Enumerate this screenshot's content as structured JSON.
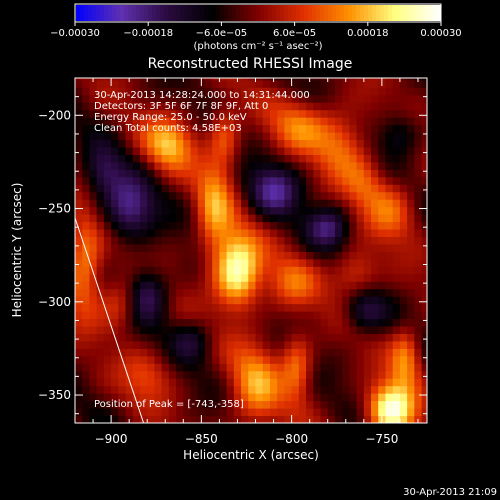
{
  "chart_data": {
    "type": "heatmap",
    "title": "Reconstructed RHESSI Image",
    "xlabel": "Heliocentric X (arcsec)",
    "ylabel": "Heliocentric Y (arcsec)",
    "xlim": [
      -920,
      -725
    ],
    "ylim": [
      -365,
      -180
    ],
    "x_ticks": [
      -900,
      -850,
      -800,
      -750
    ],
    "y_ticks": [
      -350,
      -300,
      -250,
      -200
    ],
    "x_tick_labels": [
      "−900",
      "−850",
      "−800",
      "−750"
    ],
    "y_tick_labels": [
      "−350",
      "−300",
      "−250",
      "−200"
    ],
    "colorbar": {
      "range": [
        -0.0003,
        0.0003
      ],
      "ticks": [
        -0.0003,
        -0.00018,
        -6e-05,
        6e-05,
        0.00018,
        0.0003
      ],
      "tick_labels": [
        "−0.00030",
        "−0.00018",
        "−6.0e−05",
        "6.0e−05",
        "0.00018",
        "0.00030"
      ],
      "unit_label": "(photons cm⁻² s⁻¹ asec⁻²)",
      "colormap": [
        "#0000ff",
        "#6030b0",
        "#2a0a40",
        "#000000",
        "#800000",
        "#e03000",
        "#ff9000",
        "#ffff80",
        "#ffffff"
      ]
    },
    "annotations": [
      "30-Apr-2013 14:28:24.000 to 14:31:44.000",
      "Detectors: 3F 5F 6F 7F 8F 9F, Att 0",
      "Energy Range: 25.0 - 50.0 keV",
      "Clean     Total counts: 4.58E+03"
    ],
    "peak_label": "Position of Peak = [-743,-358]",
    "peak": [
      -743,
      -358
    ],
    "limb_line": [
      [
        -920,
        -255
      ],
      [
        -882,
        -365
      ]
    ],
    "hot_spots": [
      {
        "x": -830,
        "y": -283,
        "v": 0.0003,
        "sx": 9,
        "sy": 14
      },
      {
        "x": -843,
        "y": -250,
        "v": 0.00016,
        "sx": 7,
        "sy": 18
      },
      {
        "x": -837,
        "y": -212,
        "v": 0.00012,
        "sx": 6,
        "sy": 12
      },
      {
        "x": -868,
        "y": -215,
        "v": 0.00018,
        "sx": 10,
        "sy": 10
      },
      {
        "x": -795,
        "y": -205,
        "v": 0.00013,
        "sx": 12,
        "sy": 10
      },
      {
        "x": -772,
        "y": -215,
        "v": 0.00014,
        "sx": 10,
        "sy": 12
      },
      {
        "x": -745,
        "y": -250,
        "v": 0.00012,
        "sx": 10,
        "sy": 12
      },
      {
        "x": -820,
        "y": -345,
        "v": 0.00016,
        "sx": 10,
        "sy": 16
      },
      {
        "x": -797,
        "y": -335,
        "v": 0.00015,
        "sx": 6,
        "sy": 12
      },
      {
        "x": -745,
        "y": -358,
        "v": 0.0003,
        "sx": 9,
        "sy": 10
      },
      {
        "x": -737,
        "y": -330,
        "v": 0.00015,
        "sx": 6,
        "sy": 12
      },
      {
        "x": -915,
        "y": -280,
        "v": 0.00018,
        "sx": 7,
        "sy": 18
      },
      {
        "x": -895,
        "y": -300,
        "v": 0.00012,
        "sx": 8,
        "sy": 10
      },
      {
        "x": -800,
        "y": -290,
        "v": 0.00011,
        "sx": 10,
        "sy": 10
      },
      {
        "x": -765,
        "y": -285,
        "v": 0.00012,
        "sx": 9,
        "sy": 9
      },
      {
        "x": -760,
        "y": -235,
        "v": 9e-05,
        "sx": 8,
        "sy": 10
      },
      {
        "x": -880,
        "y": -340,
        "v": 9e-05,
        "sx": 10,
        "sy": 10
      }
    ],
    "cold_spots": [
      {
        "x": -890,
        "y": -250,
        "v": -0.00018,
        "sx": 10,
        "sy": 12
      },
      {
        "x": -810,
        "y": -240,
        "v": -0.00016,
        "sx": 10,
        "sy": 10
      },
      {
        "x": -780,
        "y": -260,
        "v": -0.00014,
        "sx": 8,
        "sy": 8
      },
      {
        "x": -880,
        "y": -295,
        "v": -0.00016,
        "sx": 8,
        "sy": 10
      },
      {
        "x": -855,
        "y": -320,
        "v": -0.0001,
        "sx": 8,
        "sy": 8
      },
      {
        "x": -760,
        "y": -305,
        "v": -0.00012,
        "sx": 8,
        "sy": 8
      },
      {
        "x": -905,
        "y": -230,
        "v": -0.00012,
        "sx": 8,
        "sy": 10
      },
      {
        "x": -740,
        "y": -210,
        "v": -0.0001,
        "sx": 8,
        "sy": 8
      }
    ]
  },
  "footer_timestamp": "30-Apr-2013 21:09"
}
